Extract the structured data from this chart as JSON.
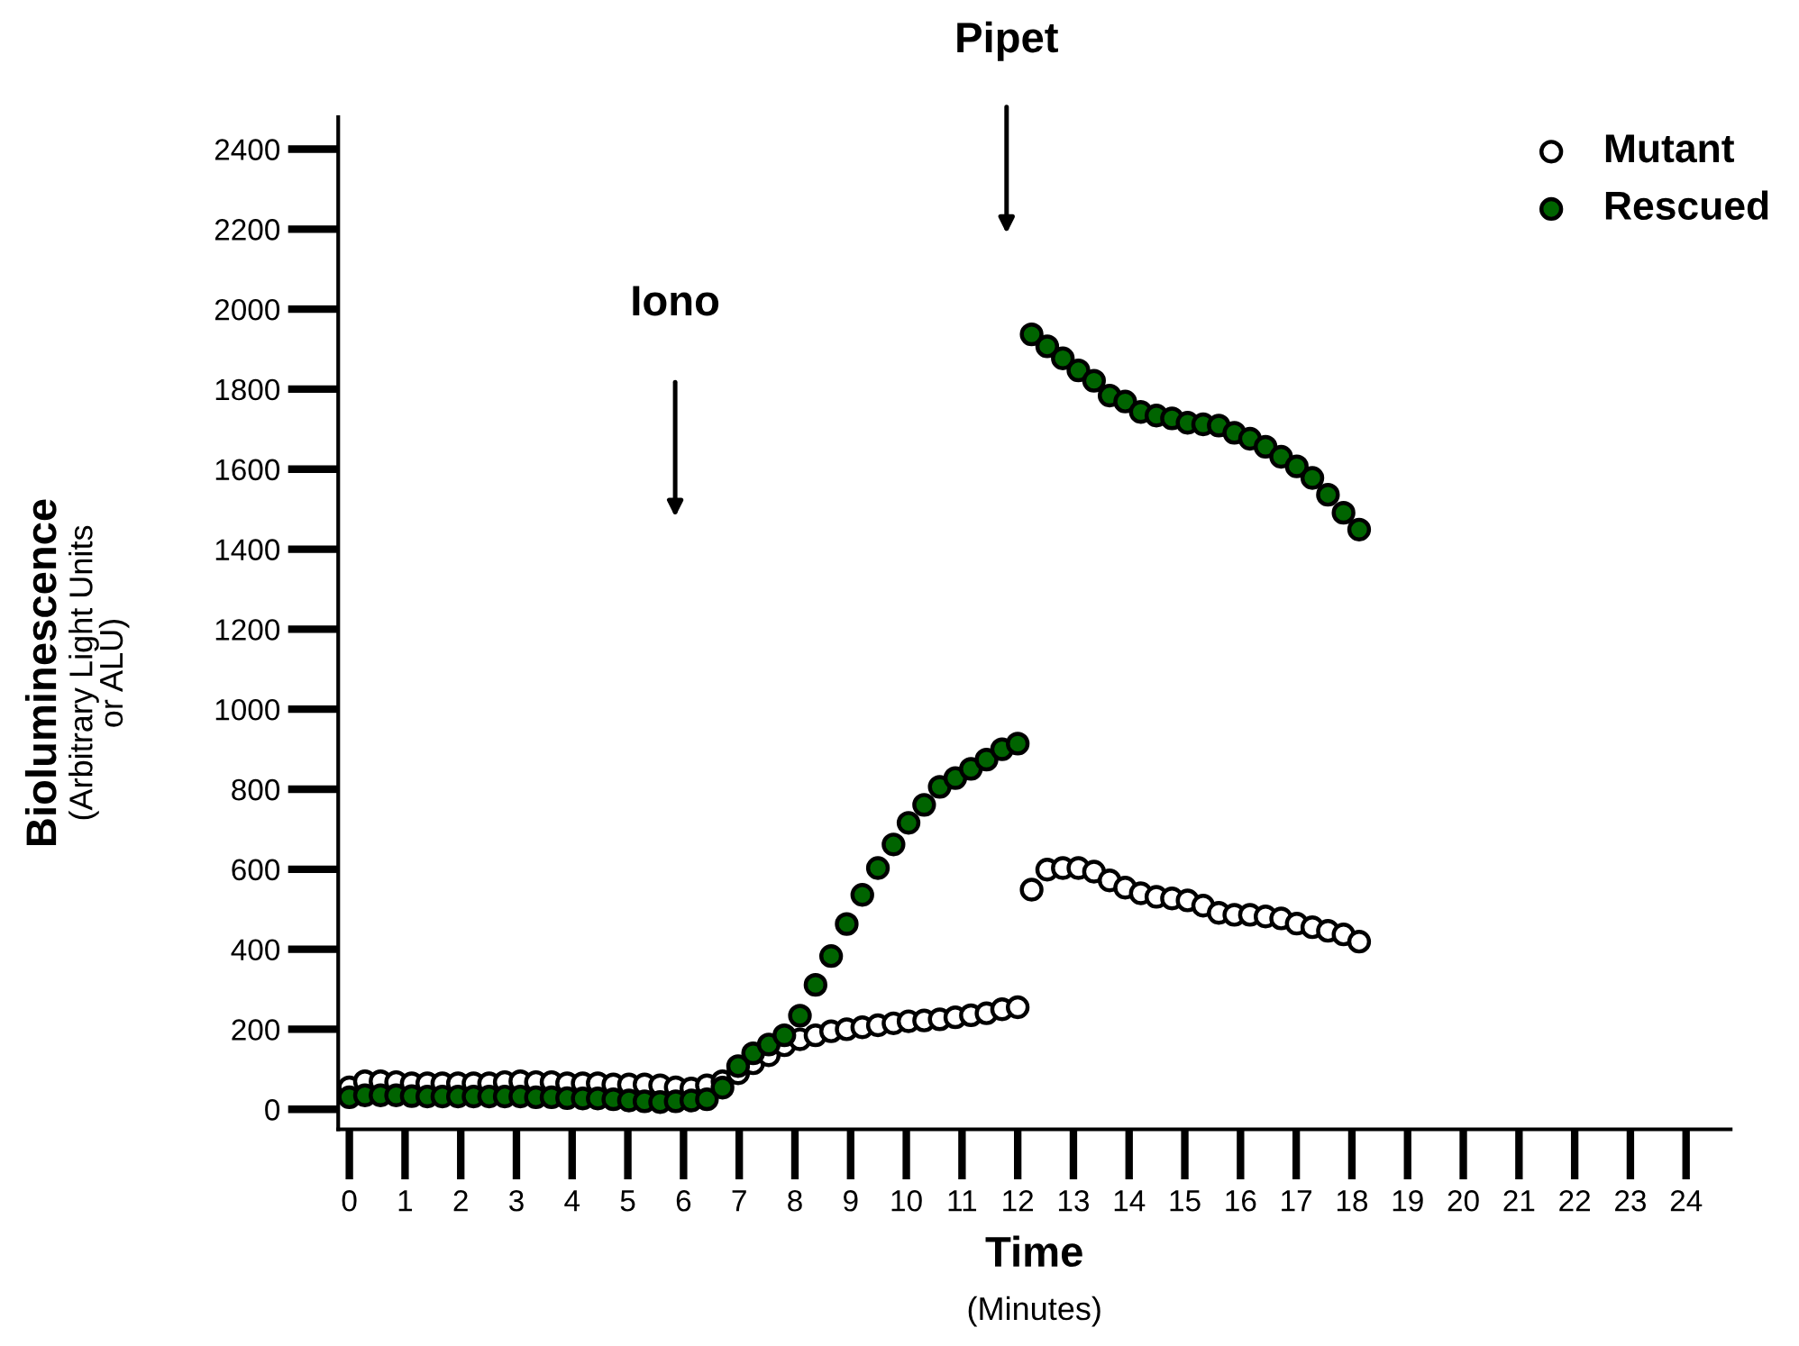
{
  "chart_data": {
    "type": "scatter",
    "xlabel": "Time\n(Minutes)",
    "ylabel": "Bioluminescence\n(Arbitrary Light Units\nor ALU)",
    "xlim": [
      -0.2,
      24.8
    ],
    "ylim": [
      -50,
      2480
    ],
    "xticks": [
      0,
      1,
      2,
      3,
      4,
      5,
      6,
      7,
      8,
      9,
      10,
      11,
      12,
      13,
      14,
      15,
      16,
      17,
      18,
      19,
      20,
      21,
      22,
      23,
      24
    ],
    "yticks": [
      0,
      200,
      400,
      600,
      800,
      1000,
      1200,
      1400,
      1600,
      1800,
      2000,
      2200,
      2400
    ],
    "grid": false,
    "legend": "top right",
    "marker": "circle",
    "annotations": [
      "Iono",
      "Pipet"
    ],
    "series": [
      {
        "name": "Mutant",
        "color": "#ffffff",
        "x": [
          0,
          0.28,
          0.56,
          0.84,
          1.12,
          1.4,
          1.67,
          1.95,
          2.23,
          2.51,
          2.79,
          3.07,
          3.35,
          3.63,
          3.91,
          4.19,
          4.46,
          4.74,
          5.02,
          5.3,
          5.58,
          5.86,
          6.14,
          6.42,
          6.7,
          6.98,
          7.25,
          7.53,
          7.81,
          8.09,
          8.37,
          8.65,
          8.93,
          9.21,
          9.49,
          9.77,
          10.04,
          10.32,
          10.6,
          10.88,
          11.16,
          11.44,
          11.72,
          12.0,
          12.25,
          12.53,
          12.81,
          13.09,
          13.37,
          13.65,
          13.93,
          14.21,
          14.49,
          14.77,
          15.05,
          15.33,
          15.61,
          15.89,
          16.17,
          16.45,
          16.73,
          17.01,
          17.29,
          17.57,
          17.85,
          18.13
        ],
        "values": [
          55,
          70,
          70,
          68,
          65,
          65,
          65,
          65,
          65,
          65,
          68,
          70,
          68,
          68,
          65,
          65,
          65,
          62,
          62,
          62,
          60,
          55,
          52,
          60,
          70,
          90,
          115,
          135,
          160,
          175,
          185,
          195,
          200,
          205,
          210,
          215,
          220,
          222,
          225,
          230,
          235,
          240,
          250,
          255,
          549,
          599,
          603,
          603,
          594,
          572,
          554,
          540,
          531,
          527,
          522,
          509,
          491,
          486,
          486,
          482,
          477,
          464,
          455,
          446,
          437,
          419
        ]
      },
      {
        "name": "Rescued",
        "color": "#006400",
        "x": [
          0,
          0.28,
          0.56,
          0.84,
          1.12,
          1.4,
          1.67,
          1.95,
          2.23,
          2.51,
          2.79,
          3.07,
          3.35,
          3.63,
          3.91,
          4.19,
          4.46,
          4.74,
          5.02,
          5.3,
          5.58,
          5.86,
          6.14,
          6.42,
          6.7,
          6.98,
          7.25,
          7.53,
          7.81,
          8.09,
          8.37,
          8.65,
          8.93,
          9.21,
          9.49,
          9.77,
          10.04,
          10.32,
          10.6,
          10.88,
          11.16,
          11.44,
          11.72,
          12.0,
          12.25,
          12.53,
          12.81,
          13.09,
          13.37,
          13.65,
          13.93,
          14.21,
          14.49,
          14.77,
          15.05,
          15.33,
          15.61,
          15.89,
          16.17,
          16.45,
          16.73,
          17.01,
          17.29,
          17.57,
          17.85,
          18.13
        ],
        "values": [
          30,
          35,
          35,
          35,
          33,
          32,
          32,
          32,
          32,
          32,
          32,
          32,
          30,
          30,
          28,
          27,
          27,
          25,
          22,
          20,
          18,
          20,
          22,
          25,
          54,
          108,
          140,
          162,
          185,
          234,
          311,
          383,
          463,
          536,
          603,
          662,
          716,
          761,
          806,
          828,
          851,
          874,
          900,
          914,
          1937,
          1907,
          1877,
          1847,
          1821,
          1784,
          1769,
          1743,
          1734,
          1727,
          1716,
          1712,
          1709,
          1691,
          1676,
          1656,
          1631,
          1607,
          1578,
          1536,
          1491,
          1449
        ]
      }
    ]
  }
}
